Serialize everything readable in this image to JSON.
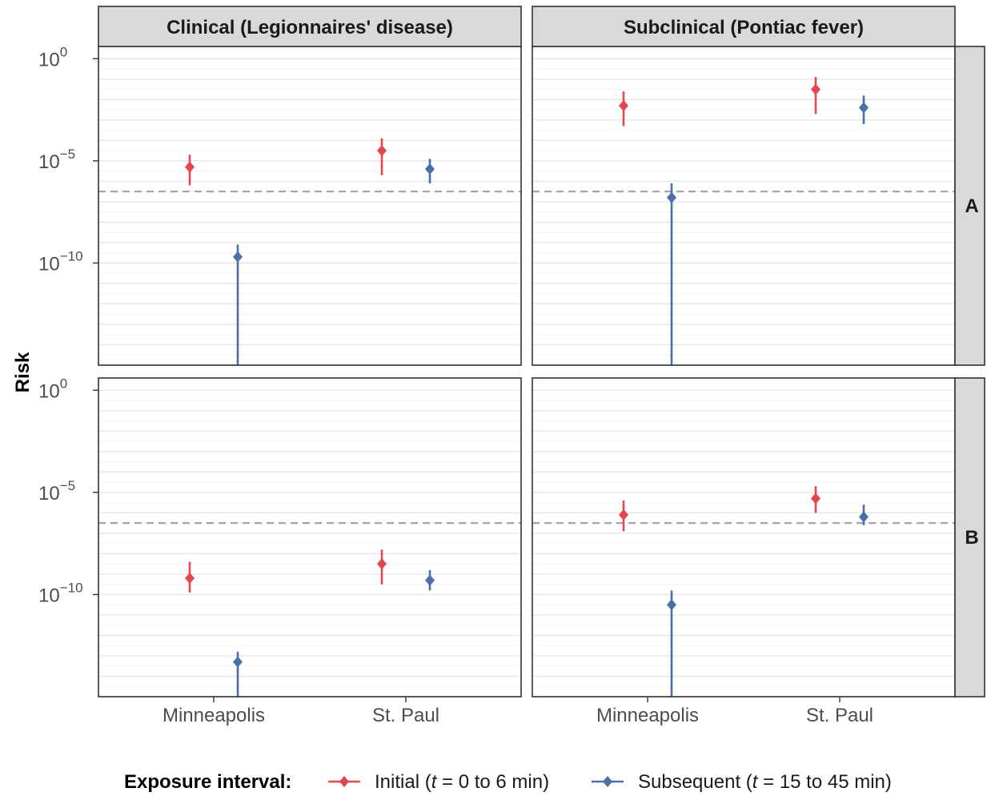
{
  "chart_data": {
    "type": "scatter",
    "y_axis_label": "Risk",
    "y_scale": "log10",
    "y_exponent_range": [
      -15,
      0.6
    ],
    "y_tick_exponents": [
      0,
      -5,
      -10
    ],
    "y_tick_base": "10",
    "threshold_exponent": -6.5,
    "threshold_style": "dashed grey",
    "grid": true,
    "categories": [
      "Minneapolis",
      "St. Paul"
    ],
    "facet_columns": [
      "Clinical (Legionnaires' disease)",
      "Subclinical (Pontiac fever)"
    ],
    "facet_rows": [
      "A",
      "B"
    ],
    "legend": {
      "title": "Exposure interval:",
      "position": "bottom",
      "entries": [
        {
          "series": "initial",
          "prefix": "Initial (",
          "var": "t",
          "suffix": " = 0 to 6 min)",
          "color": "#E0474F"
        },
        {
          "series": "subsequent",
          "prefix": "Subsequent (",
          "var": "t",
          "suffix": " = 15 to 45 min)",
          "color": "#4A70A5"
        }
      ]
    },
    "series_colors": {
      "initial": "#E0474F",
      "subsequent": "#4A70A5"
    },
    "panels": [
      {
        "row": "A",
        "column": "Clinical (Legionnaires' disease)",
        "points": [
          {
            "category": "Minneapolis",
            "series": "initial",
            "y": -5.3,
            "lo": -6.2,
            "hi": -4.7
          },
          {
            "category": "Minneapolis",
            "series": "subsequent",
            "y": -9.7,
            "lo": -15,
            "hi": -9.1
          },
          {
            "category": "St. Paul",
            "series": "initial",
            "y": -4.5,
            "lo": -5.7,
            "hi": -3.9
          },
          {
            "category": "St. Paul",
            "series": "subsequent",
            "y": -5.4,
            "lo": -6.1,
            "hi": -4.9
          }
        ]
      },
      {
        "row": "A",
        "column": "Subclinical (Pontiac fever)",
        "points": [
          {
            "category": "Minneapolis",
            "series": "initial",
            "y": -2.3,
            "lo": -3.3,
            "hi": -1.6
          },
          {
            "category": "Minneapolis",
            "series": "subsequent",
            "y": -6.8,
            "lo": -15,
            "hi": -6.1
          },
          {
            "category": "St. Paul",
            "series": "initial",
            "y": -1.5,
            "lo": -2.7,
            "hi": -0.9
          },
          {
            "category": "St. Paul",
            "series": "subsequent",
            "y": -2.4,
            "lo": -3.2,
            "hi": -1.8
          }
        ]
      },
      {
        "row": "B",
        "column": "Clinical (Legionnaires' disease)",
        "points": [
          {
            "category": "Minneapolis",
            "series": "initial",
            "y": -9.2,
            "lo": -9.9,
            "hi": -8.4
          },
          {
            "category": "Minneapolis",
            "series": "subsequent",
            "y": -13.3,
            "lo": -15,
            "hi": -12.8
          },
          {
            "category": "St. Paul",
            "series": "initial",
            "y": -8.5,
            "lo": -9.5,
            "hi": -7.8
          },
          {
            "category": "St. Paul",
            "series": "subsequent",
            "y": -9.3,
            "lo": -9.8,
            "hi": -8.8
          }
        ]
      },
      {
        "row": "B",
        "column": "Subclinical (Pontiac fever)",
        "points": [
          {
            "category": "Minneapolis",
            "series": "initial",
            "y": -6.1,
            "lo": -6.9,
            "hi": -5.4
          },
          {
            "category": "Minneapolis",
            "series": "subsequent",
            "y": -10.5,
            "lo": -15,
            "hi": -9.8
          },
          {
            "category": "St. Paul",
            "series": "initial",
            "y": -5.3,
            "lo": -6.0,
            "hi": -4.7
          },
          {
            "category": "St. Paul",
            "series": "subsequent",
            "y": -6.2,
            "lo": -6.6,
            "hi": -5.6
          }
        ]
      }
    ]
  }
}
